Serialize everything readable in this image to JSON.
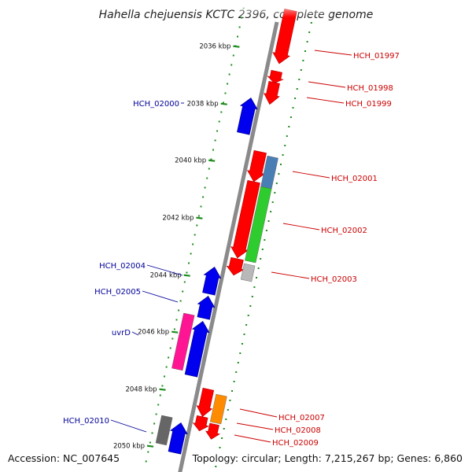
{
  "title": "Hahella chejuensis KCTC 2396, complete genome",
  "footer": {
    "accession": "Accession: NC_007645",
    "topology": "Topology: circular; Length: 7,215,267 bp; Genes: 6,860"
  },
  "colors": {
    "forward": "#ff0000",
    "reverse": "#0000ee",
    "forward_label": "#cc0000",
    "reverse_label": "#000099",
    "backbone": "#8a8a8a",
    "tick_dots": "#1a8c1a"
  },
  "ticks": [
    {
      "label": "2036 kbp"
    },
    {
      "label": "2038 kbp"
    },
    {
      "label": "2040 kbp"
    },
    {
      "label": "2042 kbp"
    },
    {
      "label": "2044 kbp"
    },
    {
      "label": "2046 kbp"
    },
    {
      "label": "2048 kbp"
    },
    {
      "label": "2050 kbp"
    }
  ],
  "genes": [
    {
      "label": "HCH_01997",
      "strand": "forward"
    },
    {
      "label": "HCH_01998",
      "strand": "forward"
    },
    {
      "label": "HCH_01999",
      "strand": "forward"
    },
    {
      "label": "HCH_02000",
      "strand": "reverse"
    },
    {
      "label": "HCH_02001",
      "strand": "forward"
    },
    {
      "label": "HCH_02002",
      "strand": "forward"
    },
    {
      "label": "HCH_02003",
      "strand": "forward"
    },
    {
      "label": "HCH_02004",
      "strand": "reverse"
    },
    {
      "label": "HCH_02005",
      "strand": "reverse"
    },
    {
      "label": "uvrD",
      "strand": "reverse"
    },
    {
      "label": "HCH_02007",
      "strand": "forward"
    },
    {
      "label": "HCH_02008",
      "strand": "forward"
    },
    {
      "label": "HCH_02009",
      "strand": "forward"
    },
    {
      "label": "HCH_02010",
      "strand": "reverse"
    }
  ]
}
